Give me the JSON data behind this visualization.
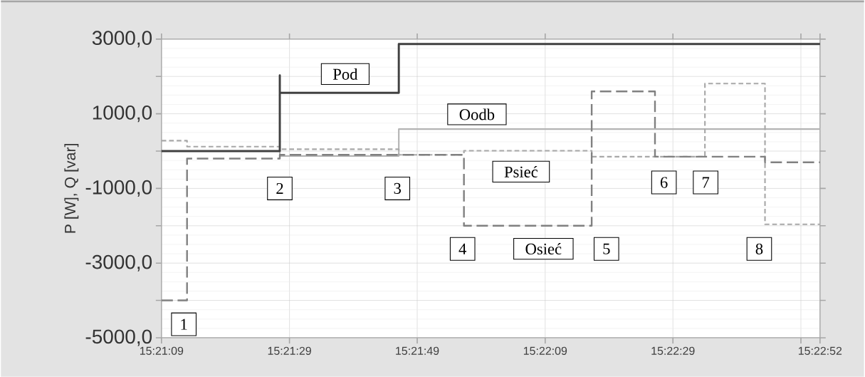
{
  "chart_data": {
    "type": "line",
    "ylabel": "P [W], Q [var]",
    "xlim": [
      15.3525,
      15.38111
    ],
    "ylim": [
      -5000,
      3000
    ],
    "xticks": [
      {
        "value": 15.3525,
        "label": "15:21:09"
      },
      {
        "value": 15.35806,
        "label": "15:21:29"
      },
      {
        "value": 15.36361,
        "label": "15:21:49"
      },
      {
        "value": 15.36917,
        "label": "15:22:09"
      },
      {
        "value": 15.37472,
        "label": "15:22:29"
      },
      {
        "value": 15.38028,
        "label": null
      },
      {
        "value": 15.38111,
        "label": "15:22:52"
      }
    ],
    "yticks": [
      {
        "value": -5000,
        "label": "-5000,0"
      },
      {
        "value": -4000,
        "label": null
      },
      {
        "value": -3000,
        "label": "-3000,0"
      },
      {
        "value": -2000,
        "label": null
      },
      {
        "value": -1000,
        "label": "-1000,0"
      },
      {
        "value": 0,
        "label": null
      },
      {
        "value": 1000,
        "label": "1000,0"
      },
      {
        "value": 2000,
        "label": null
      },
      {
        "value": 3000,
        "label": "3000,0"
      }
    ],
    "grid": true,
    "series": [
      {
        "name": "Oodb",
        "color": "#b4b4b4",
        "line_style": "solid",
        "x": [
          15.3525,
          15.35764,
          15.35764,
          15.36281,
          15.36281,
          15.38111
        ],
        "values": [
          0,
          0,
          -130,
          -130,
          590,
          590
        ]
      },
      {
        "name": "Psieć",
        "color": "#a8a8a8",
        "line_style": "dotted",
        "x": [
          15.3525,
          15.35361,
          15.35361,
          15.35764,
          15.35764,
          15.36281,
          15.36281,
          15.36564,
          15.36564,
          15.37119,
          15.37119,
          15.37611,
          15.37611,
          15.37872,
          15.37872,
          15.38111
        ],
        "values": [
          280,
          280,
          120,
          120,
          50,
          50,
          -100,
          -100,
          10,
          10,
          -150,
          -150,
          1810,
          1810,
          -1960,
          -1960
        ]
      },
      {
        "name": "Osieć",
        "color": "#808080",
        "line_style": "dashed",
        "x": [
          15.3525,
          15.35361,
          15.35361,
          15.35764,
          15.35764,
          15.36564,
          15.36564,
          15.37119,
          15.37119,
          15.37394,
          15.37394,
          15.37872,
          15.37872,
          15.38111
        ],
        "values": [
          -4000,
          -4000,
          -200,
          -200,
          -100,
          -100,
          -2000,
          -2000,
          1600,
          1600,
          -150,
          -150,
          -300,
          -300
        ]
      },
      {
        "name": "Pod",
        "color": "#404040",
        "line_style": "solid",
        "x": [
          15.3525,
          15.35764,
          15.35764,
          15.35764,
          15.36281,
          15.36281,
          15.38111
        ],
        "values": [
          0,
          0,
          2030,
          1560,
          1560,
          2870,
          2870
        ]
      }
    ],
    "annotations": [
      {
        "text": "1",
        "x": 15.35347,
        "y": -4640
      },
      {
        "text": "2",
        "x": 15.35764,
        "y": -1000
      },
      {
        "text": "3",
        "x": 15.36275,
        "y": -1000
      },
      {
        "text": "4",
        "x": 15.36558,
        "y": -2620
      },
      {
        "text": "5",
        "x": 15.37183,
        "y": -2620
      },
      {
        "text": "6",
        "x": 15.37433,
        "y": -840
      },
      {
        "text": "7",
        "x": 15.37614,
        "y": -840
      },
      {
        "text": "8",
        "x": 15.37847,
        "y": -2620
      }
    ]
  }
}
